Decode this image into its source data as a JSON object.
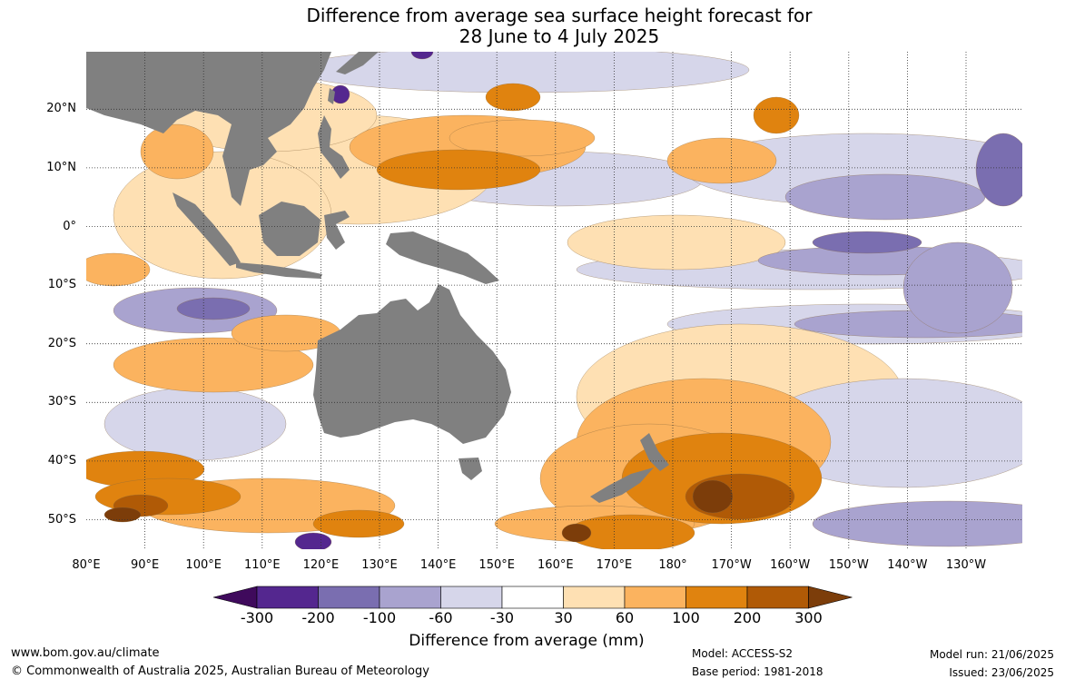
{
  "title": {
    "line1": "Difference from average sea surface height forecast for",
    "line2": "28 June to 4 July 2025"
  },
  "lat_labels": [
    "20°N",
    "10°N",
    "0°",
    "10°S",
    "20°S",
    "30°S",
    "40°S",
    "50°S"
  ],
  "lon_labels": [
    "80°E",
    "90°E",
    "100°E",
    "110°E",
    "120°E",
    "130°E",
    "140°E",
    "150°E",
    "160°E",
    "170°E",
    "180°",
    "170°W",
    "160°W",
    "150°W",
    "140°W",
    "130°W"
  ],
  "colorbar": {
    "ticks": [
      "-300",
      "-200",
      "-100",
      "-60",
      "-30",
      "30",
      "60",
      "100",
      "200",
      "300"
    ],
    "colors": [
      "#3f0a5c",
      "#54278f",
      "#7a6eb0",
      "#a9a3cf",
      "#d6d6ea",
      "#ffffff",
      "#fee0b3",
      "#fbb35f",
      "#e0830f",
      "#b05a06",
      "#7c3d0a"
    ],
    "label": "Difference from average (mm)"
  },
  "land_color": "#808080",
  "footer": {
    "website": "www.bom.gov.au/climate",
    "copyright": "© Commonwealth of Australia 2025, Australian Bureau of Meteorology",
    "model": "Model: ACCESS-S2",
    "base_period": "Base period: 1981-2018",
    "model_run": "Model run: 21/06/2025",
    "issued": "Issued: 23/06/2025"
  }
}
